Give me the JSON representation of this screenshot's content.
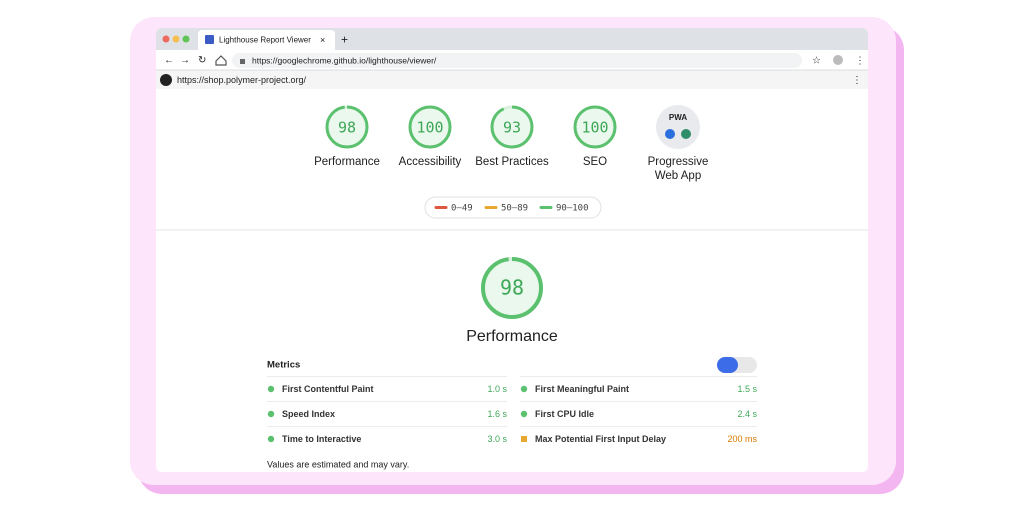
{
  "browser": {
    "tab_title": "Lighthouse Report Viewer",
    "url": "https://googlechrome.github.io/lighthouse/viewer/"
  },
  "report": {
    "url": "https://shop.polymer-project.org/"
  },
  "categories": [
    {
      "score": 98,
      "label": "Performance"
    },
    {
      "score": 100,
      "label": "Accessibility"
    },
    {
      "score": 93,
      "label": "Best Practices"
    },
    {
      "score": 100,
      "label": "SEO"
    }
  ],
  "pwa": {
    "badge": "PWA",
    "label": "Progressive Web App"
  },
  "legend": [
    {
      "label": "0–49",
      "color": "#e0573f"
    },
    {
      "label": "50–89",
      "color": "#e8a830"
    },
    {
      "label": "90–100",
      "color": "#5cc16f"
    }
  ],
  "section": {
    "score": 98,
    "title": "Performance"
  },
  "metrics": {
    "title": "Metrics",
    "items": [
      {
        "name": "First Contentful Paint",
        "value": "1.0 s",
        "color": "#5cc16f"
      },
      {
        "name": "First Meaningful Paint",
        "value": "1.5 s",
        "color": "#5cc16f"
      },
      {
        "name": "Speed Index",
        "value": "1.6 s",
        "color": "#5cc16f"
      },
      {
        "name": "First CPU Idle",
        "value": "2.4 s",
        "color": "#5cc16f"
      },
      {
        "name": "Time to Interactive",
        "value": "3.0 s",
        "color": "#5cc16f"
      },
      {
        "name": "Max Potential First Input Delay",
        "value": "200 ms",
        "color": "#e8a830"
      }
    ],
    "note": "Values are estimated and may vary."
  }
}
